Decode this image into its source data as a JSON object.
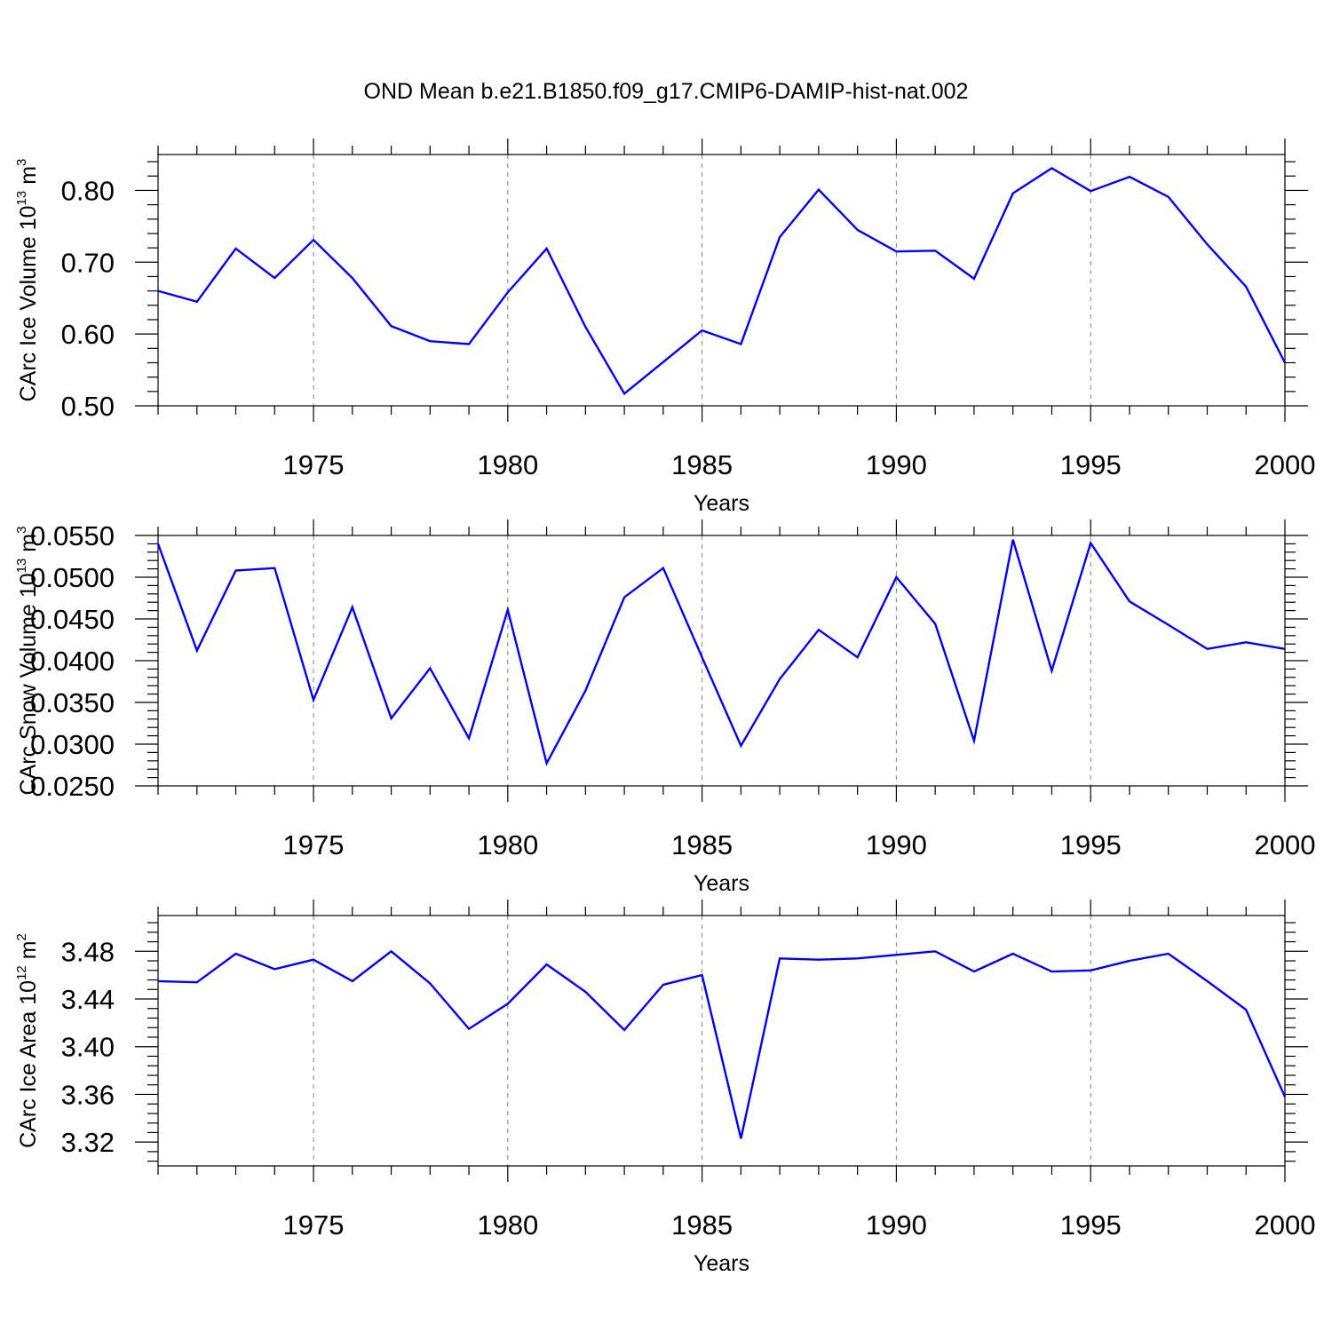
{
  "colors": {
    "line": "#0000ff",
    "axis": "#000000",
    "grid": "#808080",
    "background": "#ffffff"
  },
  "title": "OND Mean b.e21.B1850.f09_g17.CMIP6-DAMIP-hist-nat.002",
  "chart_data": [
    {
      "type": "line",
      "title": "",
      "xlabel": "Years",
      "ylabel": "CArc Ice Volume 10",
      "ylabel_exp": "13",
      "ylabel_unit": " m",
      "ylabel_unit_exp": "3",
      "xlim": [
        1971,
        2000
      ],
      "ylim": [
        0.5,
        0.85
      ],
      "xticks": [
        1975,
        1980,
        1985,
        1990,
        1995,
        2000
      ],
      "yticks": [
        0.5,
        0.6,
        0.7,
        0.8
      ],
      "ytick_labels": [
        "0.50",
        "0.60",
        "0.70",
        "0.80"
      ],
      "grid": "vertical dashed at major x ticks",
      "x": [
        1971,
        1972,
        1973,
        1974,
        1975,
        1976,
        1977,
        1978,
        1979,
        1980,
        1981,
        1982,
        1983,
        1984,
        1985,
        1986,
        1987,
        1988,
        1989,
        1990,
        1991,
        1992,
        1993,
        1994,
        1995,
        1996,
        1997,
        1998,
        1999,
        2000
      ],
      "values": [
        0.66,
        0.645,
        0.719,
        0.678,
        0.731,
        0.678,
        0.611,
        0.59,
        0.586,
        0.658,
        0.719,
        0.61,
        0.517,
        0.561,
        0.605,
        0.586,
        0.735,
        0.801,
        0.745,
        0.715,
        0.716,
        0.677,
        0.796,
        0.831,
        0.799,
        0.819,
        0.791,
        0.725,
        0.666,
        0.56
      ]
    },
    {
      "type": "line",
      "title": "",
      "xlabel": "Years",
      "ylabel": "CArc Snow Volume 10",
      "ylabel_exp": "13",
      "ylabel_unit": " m",
      "ylabel_unit_exp": "3",
      "xlim": [
        1971,
        2000
      ],
      "ylim": [
        0.025,
        0.055
      ],
      "xticks": [
        1975,
        1980,
        1985,
        1990,
        1995,
        2000
      ],
      "yticks": [
        0.025,
        0.03,
        0.035,
        0.04,
        0.045,
        0.05,
        0.055
      ],
      "ytick_labels": [
        "0.0250",
        "0.0300",
        "0.0350",
        "0.0400",
        "0.0450",
        "0.0500",
        "0.0550"
      ],
      "grid": "vertical dashed at major x ticks",
      "x": [
        1971,
        1972,
        1973,
        1974,
        1975,
        1976,
        1977,
        1978,
        1979,
        1980,
        1981,
        1982,
        1983,
        1984,
        1985,
        1986,
        1987,
        1988,
        1989,
        1990,
        1991,
        1992,
        1993,
        1994,
        1995,
        1996,
        1997,
        1998,
        1999,
        2000
      ],
      "values": [
        0.054,
        0.0412,
        0.0508,
        0.0511,
        0.0353,
        0.0464,
        0.0331,
        0.0391,
        0.0307,
        0.0461,
        0.0277,
        0.0364,
        0.0476,
        0.0511,
        0.0404,
        0.0298,
        0.0378,
        0.0437,
        0.0404,
        0.05,
        0.0444,
        0.0304,
        0.0545,
        0.0388,
        0.0541,
        0.0471,
        0.0443,
        0.0414,
        0.0422,
        0.0414
      ]
    },
    {
      "type": "line",
      "title": "",
      "xlabel": "Years",
      "ylabel": "CArc Ice Area 10",
      "ylabel_exp": "12",
      "ylabel_unit": " m",
      "ylabel_unit_exp": "2",
      "xlim": [
        1971,
        2000
      ],
      "ylim": [
        3.3,
        3.51
      ],
      "xticks": [
        1975,
        1980,
        1985,
        1990,
        1995,
        2000
      ],
      "yticks": [
        3.32,
        3.36,
        3.4,
        3.44,
        3.48
      ],
      "ytick_labels": [
        "3.32",
        "3.36",
        "3.40",
        "3.44",
        "3.48"
      ],
      "grid": "vertical dashed at major x ticks",
      "x": [
        1971,
        1972,
        1973,
        1974,
        1975,
        1976,
        1977,
        1978,
        1979,
        1980,
        1981,
        1982,
        1983,
        1984,
        1985,
        1986,
        1987,
        1988,
        1989,
        1990,
        1991,
        1992,
        1993,
        1994,
        1995,
        1996,
        1997,
        1998,
        1999,
        2000
      ],
      "values": [
        3.455,
        3.454,
        3.478,
        3.465,
        3.473,
        3.455,
        3.48,
        3.453,
        3.415,
        3.436,
        3.469,
        3.446,
        3.414,
        3.452,
        3.46,
        3.323,
        3.474,
        3.473,
        3.474,
        3.477,
        3.48,
        3.463,
        3.478,
        3.463,
        3.464,
        3.472,
        3.478,
        3.455,
        3.431,
        3.358
      ]
    }
  ]
}
